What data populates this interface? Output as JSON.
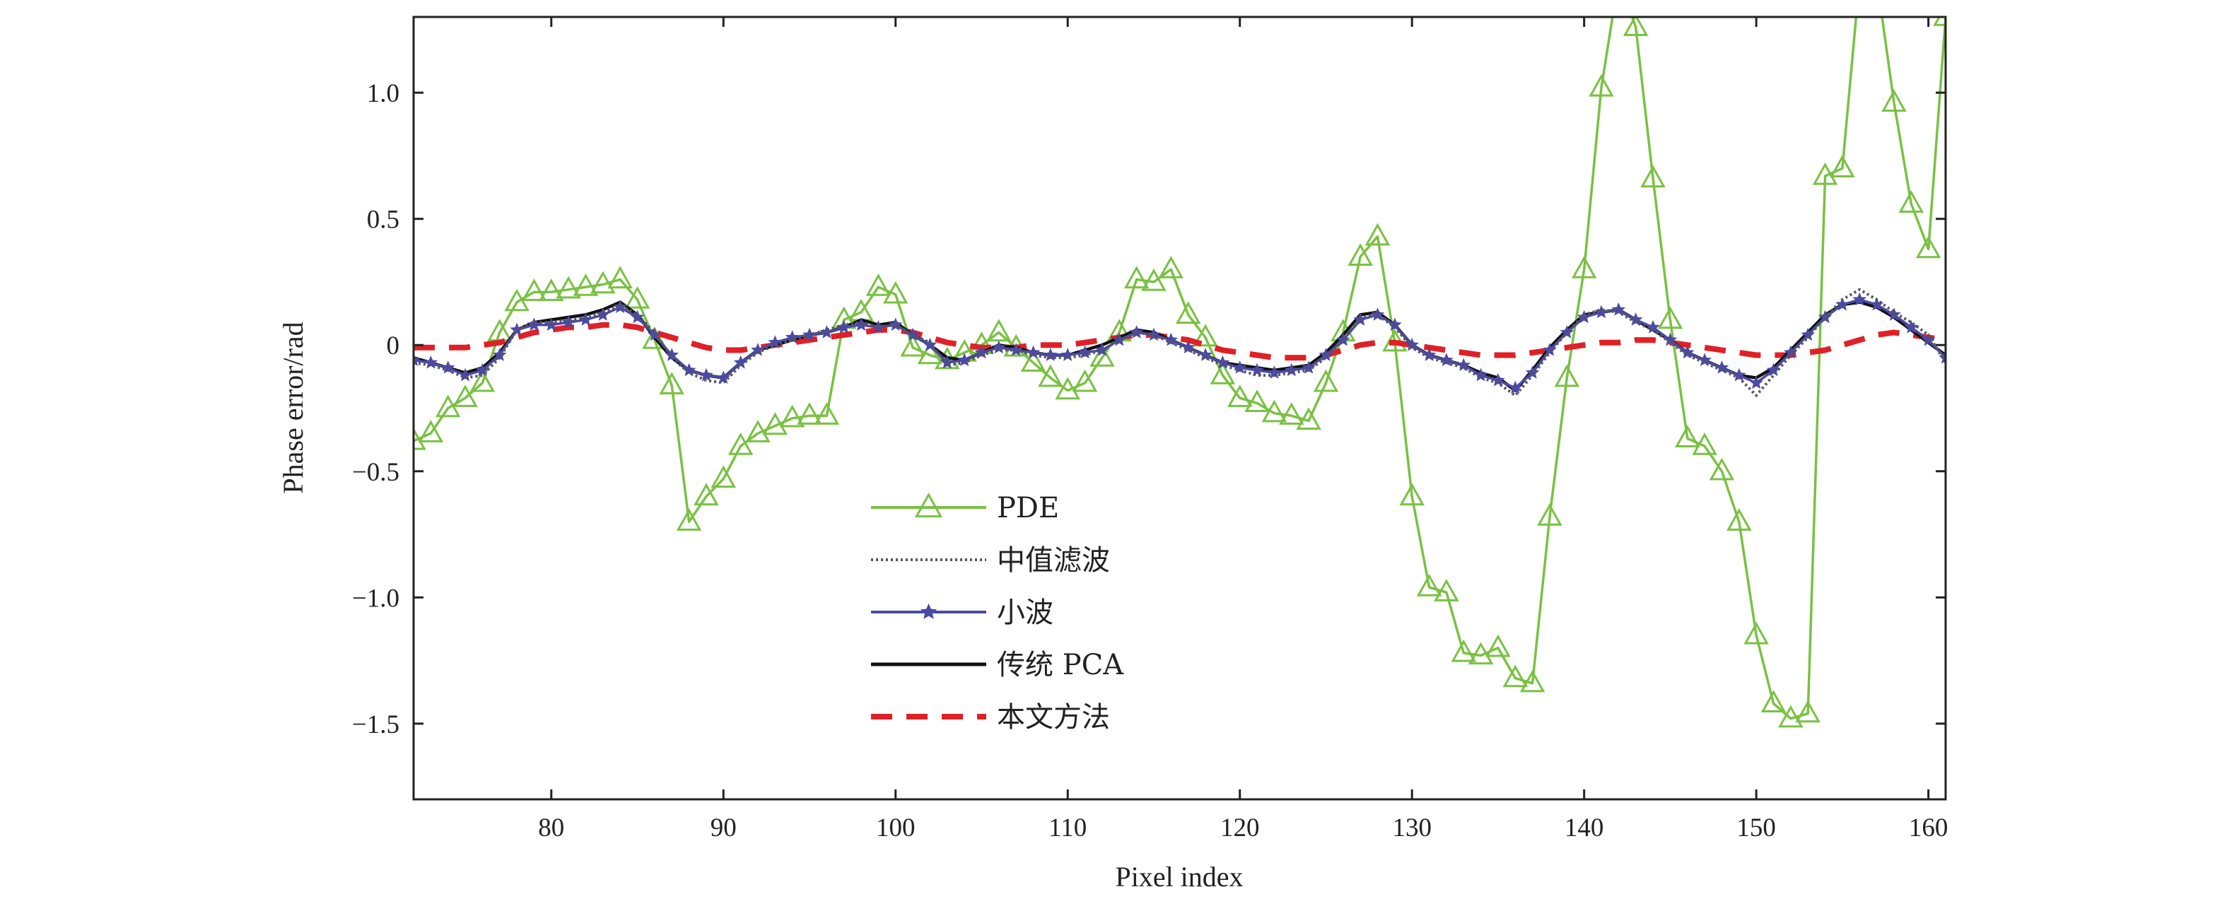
{
  "chart_data": {
    "type": "line",
    "title": "",
    "xlabel": "Pixel index",
    "ylabel": "Phase error/rad",
    "xlim": [
      72,
      161
    ],
    "ylim": [
      -1.8,
      1.3
    ],
    "x_ticks": [
      80,
      90,
      100,
      110,
      120,
      130,
      140,
      150,
      160
    ],
    "y_ticks": [
      1.0,
      0.5,
      0,
      -0.5,
      -1.0,
      -1.5
    ],
    "x_tick_labels": [
      "80",
      "90",
      "100",
      "110",
      "120",
      "130",
      "140",
      "150",
      "160"
    ],
    "y_tick_labels": [
      "1.0",
      "0.5",
      "0",
      "−0.5",
      "−1.0",
      "−1.5"
    ],
    "legend_position": "center-left",
    "grid": false,
    "x": [
      72,
      73,
      74,
      75,
      76,
      77,
      78,
      79,
      80,
      81,
      82,
      83,
      84,
      85,
      86,
      87,
      88,
      89,
      90,
      91,
      92,
      93,
      94,
      95,
      96,
      97,
      98,
      99,
      100,
      101,
      102,
      103,
      104,
      105,
      106,
      107,
      108,
      109,
      110,
      111,
      112,
      113,
      114,
      115,
      116,
      117,
      118,
      119,
      120,
      121,
      122,
      123,
      124,
      125,
      126,
      127,
      128,
      129,
      130,
      131,
      132,
      133,
      134,
      135,
      136,
      137,
      138,
      139,
      140,
      141,
      142,
      143,
      144,
      145,
      146,
      147,
      148,
      149,
      150,
      151,
      152,
      153,
      154,
      155,
      156,
      157,
      158,
      159,
      160,
      161
    ],
    "series": [
      {
        "name": "PDE",
        "color": "#7ac143",
        "style": "solid-triangle",
        "values": [
          -0.38,
          -0.35,
          -0.25,
          -0.21,
          -0.15,
          0.05,
          0.17,
          0.21,
          0.21,
          0.22,
          0.23,
          0.24,
          0.26,
          0.18,
          0.02,
          -0.16,
          -0.7,
          -0.6,
          -0.53,
          -0.4,
          -0.35,
          -0.32,
          -0.29,
          -0.28,
          -0.28,
          0.1,
          0.13,
          0.23,
          0.2,
          -0.01,
          -0.04,
          -0.06,
          -0.03,
          0.0,
          0.05,
          -0.01,
          -0.07,
          -0.13,
          -0.18,
          -0.15,
          -0.05,
          0.05,
          0.26,
          0.25,
          0.3,
          0.12,
          0.03,
          -0.12,
          -0.21,
          -0.23,
          -0.27,
          -0.28,
          -0.3,
          -0.15,
          0.05,
          0.35,
          0.43,
          0.01,
          -0.6,
          -0.96,
          -0.98,
          -1.22,
          -1.23,
          -1.2,
          -1.32,
          -1.34,
          -0.68,
          -0.13,
          0.3,
          1.02,
          1.45,
          1.26,
          0.66,
          0.1,
          -0.37,
          -0.4,
          -0.5,
          -0.7,
          -1.15,
          -1.42,
          -1.48,
          -1.46,
          0.67,
          0.7,
          1.45,
          1.45,
          0.96,
          0.56,
          0.38,
          1.3
        ]
      },
      {
        "name": "中值滤波",
        "color": "#555566",
        "style": "dotted",
        "values": [
          -0.07,
          -0.08,
          -0.1,
          -0.13,
          -0.12,
          -0.05,
          0.06,
          0.09,
          0.09,
          0.1,
          0.11,
          0.13,
          0.16,
          0.12,
          0.05,
          -0.05,
          -0.11,
          -0.14,
          -0.15,
          -0.08,
          -0.03,
          0.0,
          0.02,
          0.04,
          0.06,
          0.08,
          0.09,
          0.07,
          0.08,
          0.04,
          0.01,
          -0.08,
          -0.07,
          -0.04,
          -0.02,
          -0.02,
          -0.04,
          -0.05,
          -0.05,
          -0.04,
          -0.02,
          0.02,
          0.05,
          0.04,
          0.01,
          -0.02,
          -0.05,
          -0.08,
          -0.1,
          -0.12,
          -0.12,
          -0.11,
          -0.1,
          -0.05,
          0.02,
          0.11,
          0.12,
          0.07,
          -0.01,
          -0.05,
          -0.07,
          -0.09,
          -0.13,
          -0.15,
          -0.2,
          -0.12,
          -0.03,
          0.05,
          0.12,
          0.14,
          0.13,
          0.09,
          0.06,
          0.01,
          -0.04,
          -0.07,
          -0.1,
          -0.13,
          -0.2,
          -0.12,
          -0.04,
          0.03,
          0.11,
          0.18,
          0.22,
          0.18,
          0.13,
          0.09,
          0.04,
          -0.07
        ]
      },
      {
        "name": "小波",
        "color": "#4b4aa3",
        "style": "solid-star",
        "values": [
          -0.06,
          -0.07,
          -0.09,
          -0.12,
          -0.1,
          -0.04,
          0.06,
          0.08,
          0.08,
          0.09,
          0.1,
          0.12,
          0.15,
          0.11,
          0.04,
          -0.04,
          -0.1,
          -0.12,
          -0.13,
          -0.07,
          -0.02,
          0.01,
          0.03,
          0.04,
          0.05,
          0.07,
          0.08,
          0.07,
          0.08,
          0.04,
          0.0,
          -0.07,
          -0.06,
          -0.03,
          -0.01,
          -0.02,
          -0.03,
          -0.04,
          -0.04,
          -0.03,
          -0.02,
          0.02,
          0.05,
          0.04,
          0.02,
          -0.01,
          -0.04,
          -0.07,
          -0.09,
          -0.1,
          -0.11,
          -0.1,
          -0.09,
          -0.04,
          0.02,
          0.1,
          0.12,
          0.08,
          0.0,
          -0.04,
          -0.06,
          -0.08,
          -0.12,
          -0.14,
          -0.17,
          -0.11,
          -0.02,
          0.05,
          0.11,
          0.13,
          0.14,
          0.1,
          0.07,
          0.02,
          -0.03,
          -0.06,
          -0.09,
          -0.12,
          -0.15,
          -0.1,
          -0.03,
          0.04,
          0.11,
          0.16,
          0.18,
          0.16,
          0.12,
          0.07,
          0.02,
          -0.05
        ]
      },
      {
        "name": "传统 PCA",
        "color": "#111111",
        "style": "solid",
        "values": [
          -0.05,
          -0.07,
          -0.09,
          -0.11,
          -0.09,
          -0.03,
          0.06,
          0.09,
          0.1,
          0.11,
          0.12,
          0.14,
          0.17,
          0.12,
          0.03,
          -0.05,
          -0.1,
          -0.12,
          -0.13,
          -0.07,
          -0.02,
          0.0,
          0.02,
          0.04,
          0.05,
          0.07,
          0.1,
          0.08,
          0.09,
          0.04,
          0.0,
          -0.05,
          -0.06,
          -0.03,
          0.0,
          -0.01,
          -0.03,
          -0.04,
          -0.04,
          -0.02,
          0.0,
          0.03,
          0.06,
          0.05,
          0.02,
          -0.01,
          -0.04,
          -0.07,
          -0.08,
          -0.09,
          -0.1,
          -0.09,
          -0.08,
          -0.03,
          0.04,
          0.12,
          0.13,
          0.08,
          0.0,
          -0.04,
          -0.06,
          -0.08,
          -0.11,
          -0.13,
          -0.18,
          -0.1,
          -0.01,
          0.06,
          0.12,
          0.13,
          0.14,
          0.1,
          0.06,
          0.02,
          -0.03,
          -0.06,
          -0.09,
          -0.12,
          -0.13,
          -0.09,
          -0.02,
          0.05,
          0.12,
          0.16,
          0.17,
          0.15,
          0.11,
          0.06,
          0.01,
          -0.04
        ]
      },
      {
        "name": "本文方法",
        "color": "#e02026",
        "style": "dashed",
        "values": [
          -0.01,
          -0.01,
          -0.01,
          -0.01,
          0.0,
          0.01,
          0.03,
          0.05,
          0.06,
          0.07,
          0.07,
          0.08,
          0.08,
          0.07,
          0.05,
          0.03,
          0.01,
          -0.01,
          -0.02,
          -0.02,
          -0.01,
          0.0,
          0.01,
          0.02,
          0.03,
          0.04,
          0.05,
          0.06,
          0.06,
          0.05,
          0.03,
          0.01,
          0.0,
          -0.01,
          -0.01,
          -0.01,
          0.0,
          0.0,
          0.0,
          0.01,
          0.02,
          0.03,
          0.04,
          0.04,
          0.03,
          0.02,
          0.0,
          -0.02,
          -0.03,
          -0.04,
          -0.05,
          -0.05,
          -0.05,
          -0.04,
          -0.02,
          0.0,
          0.01,
          0.01,
          0.0,
          -0.01,
          -0.02,
          -0.03,
          -0.04,
          -0.04,
          -0.04,
          -0.03,
          -0.02,
          -0.01,
          0.0,
          0.01,
          0.01,
          0.02,
          0.02,
          0.01,
          0.0,
          -0.01,
          -0.02,
          -0.03,
          -0.04,
          -0.04,
          -0.04,
          -0.03,
          -0.02,
          0.0,
          0.02,
          0.04,
          0.05,
          0.04,
          0.03,
          0.02
        ]
      }
    ]
  }
}
